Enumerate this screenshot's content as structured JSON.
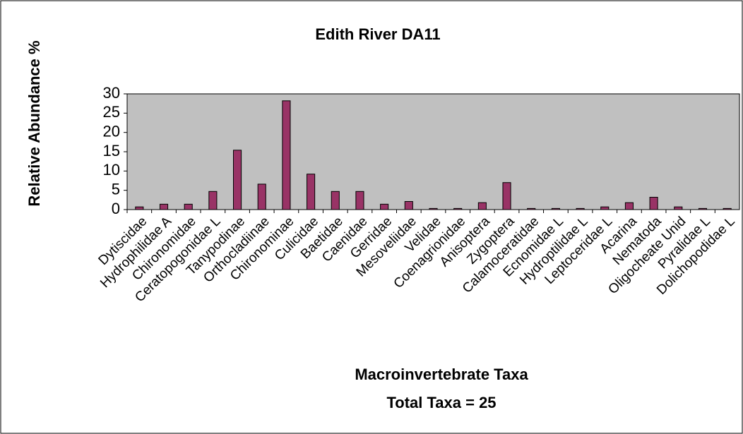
{
  "chart_data": {
    "type": "bar",
    "title": "Edith River DA11",
    "x_label": "Macroinvertebrate Taxa",
    "subtitle": "Total Taxa = 25",
    "y_label": "Relative Abundance %",
    "categories": [
      "Dytiscidae",
      "Hydrophilidae A",
      "Chironomidae",
      "Ceratopogonidae L",
      "Tanypodinae",
      "Orthocladiinae",
      "Chironominae",
      "Culicidae",
      "Baetidae",
      "Caenidae",
      "Gerridae",
      "Mesoveliidae",
      "Velidae",
      "Coenagrionidae",
      "Anisoptera",
      "Zygoptera",
      "Calamoceratidae",
      "Ecnomidae L",
      "Hydroptilidae L",
      "Leptoceridae L",
      "Acarina",
      "Nematoda",
      "Oligocheate Unid",
      "Pyralidae L",
      "Dolichopodidae L"
    ],
    "values": [
      0.7,
      1.4,
      1.4,
      4.7,
      15.4,
      6.6,
      28.2,
      9.2,
      4.7,
      4.7,
      1.4,
      2.1,
      0.3,
      0.3,
      1.8,
      7.0,
      0.3,
      0.3,
      0.3,
      0.7,
      1.8,
      3.2,
      0.7,
      0.3,
      0.3
    ],
    "color": "#993366",
    "plot_background": "#c0c0c0",
    "ylim": [
      0,
      30
    ],
    "yticks": [
      0,
      5,
      10,
      15,
      20,
      25,
      30
    ],
    "grid": false
  }
}
